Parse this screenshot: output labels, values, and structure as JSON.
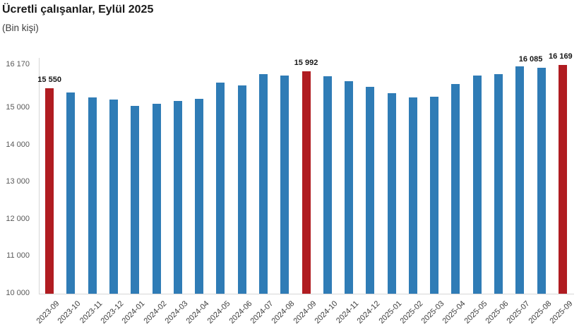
{
  "chart_data": {
    "type": "bar",
    "title": "Ücretli çalışanlar, Eylül 2025",
    "subtitle": "(Bin kişi)",
    "xlabel": "",
    "ylabel": "",
    "ylim": [
      10000,
      16170
    ],
    "grid": false,
    "legend": false,
    "categories": [
      "2023-09",
      "2023-10",
      "2023-11",
      "2023-12",
      "2024-01",
      "2024-02",
      "2024-03",
      "2024-04",
      "2024-05",
      "2024-06",
      "2024-07",
      "2024-08",
      "2024-09",
      "2024-10",
      "2024-11",
      "2024-12",
      "2025-01",
      "2025-02",
      "2025-03",
      "2025-04",
      "2025-05",
      "2025-06",
      "2025-07",
      "2025-08",
      "2025-09"
    ],
    "values": [
      15550,
      15420,
      15300,
      15240,
      15065,
      15115,
      15205,
      15255,
      15690,
      15610,
      15915,
      15890,
      15992,
      15860,
      15740,
      15575,
      15400,
      15285,
      15310,
      15660,
      15885,
      15930,
      16125,
      16085,
      16169
    ],
    "highlight_indices": [
      0,
      12,
      24
    ],
    "data_labels": [
      {
        "index": 0,
        "text": "15 550",
        "dx": 0
      },
      {
        "index": 12,
        "text": "15 992",
        "dx": 0
      },
      {
        "index": 23,
        "text": "16 085",
        "dx": -15
      },
      {
        "index": 24,
        "text": "16 169",
        "dx": -3
      }
    ],
    "yticks": [
      {
        "value": 16170,
        "label": "16 170"
      },
      {
        "value": 15000,
        "label": "15 000"
      },
      {
        "value": 14000,
        "label": "14 000"
      },
      {
        "value": 13000,
        "label": "13 000"
      },
      {
        "value": 12000,
        "label": "12 000"
      },
      {
        "value": 11000,
        "label": "11 000"
      },
      {
        "value": 10000,
        "label": "10 000"
      }
    ],
    "bar_color": "#2f7cb6",
    "highlight_color": "#b01c21",
    "axis_color": "#d6d6d6"
  }
}
